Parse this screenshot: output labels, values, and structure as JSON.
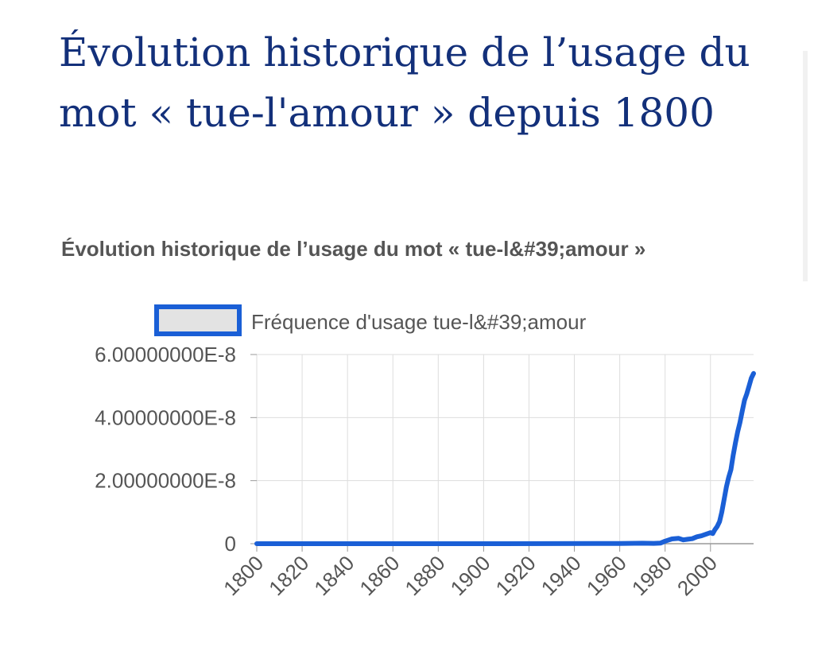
{
  "page": {
    "title": "Évolution historique de l’usage du mot « tue-l'amour » depuis 1800"
  },
  "chart_data": {
    "type": "line",
    "title": "Évolution historique de l’usage du mot « tue-l&#39;amour »",
    "xlabel": "",
    "ylabel": "",
    "legend_position": "top",
    "grid": true,
    "xlim": [
      1800,
      2019
    ],
    "ylim": [
      0,
      6e-08
    ],
    "x_ticks": [
      "1800",
      "1820",
      "1840",
      "1860",
      "1880",
      "1900",
      "1920",
      "1940",
      "1960",
      "1980",
      "2000"
    ],
    "y_ticks": [
      "0",
      "2.00000000E-8",
      "4.00000000E-8",
      "6.00000000E-8"
    ],
    "series": [
      {
        "name": "Fréquence d'usage tue-l&#39;amour",
        "color": "#1a5fd6",
        "x": [
          1800,
          1850,
          1900,
          1950,
          1960,
          1970,
          1975,
          1978,
          1980,
          1983,
          1986,
          1988,
          1990,
          1992,
          1994,
          1996,
          1998,
          2000,
          2001,
          2002,
          2003,
          2004,
          2005,
          2006,
          2007,
          2008,
          2009,
          2010,
          2011,
          2012,
          2013,
          2014,
          2015,
          2016,
          2017,
          2018,
          2019
        ],
        "y": [
          0,
          0,
          0,
          5e-11,
          5e-11,
          1.5e-10,
          1e-10,
          2e-10,
          8e-10,
          1.5e-09,
          1.7e-09,
          1.2e-09,
          1.4e-09,
          1.6e-09,
          2.2e-09,
          2.5e-09,
          3e-09,
          3.5e-09,
          3.2e-09,
          4.5e-09,
          5.5e-09,
          7e-09,
          1e-08,
          1.4e-08,
          1.8e-08,
          2.1e-08,
          2.35e-08,
          2.8e-08,
          3.2e-08,
          3.55e-08,
          3.85e-08,
          4.2e-08,
          4.55e-08,
          4.75e-08,
          5e-08,
          5.25e-08,
          5.4e-08
        ]
      }
    ]
  },
  "colors": {
    "title": "#13307a",
    "chart_title": "#555555",
    "line": "#1a5fd6",
    "legend_fill": "#e3e3e3",
    "grid": "#dddddd",
    "axis": "#999999",
    "tick_text": "#555555"
  }
}
